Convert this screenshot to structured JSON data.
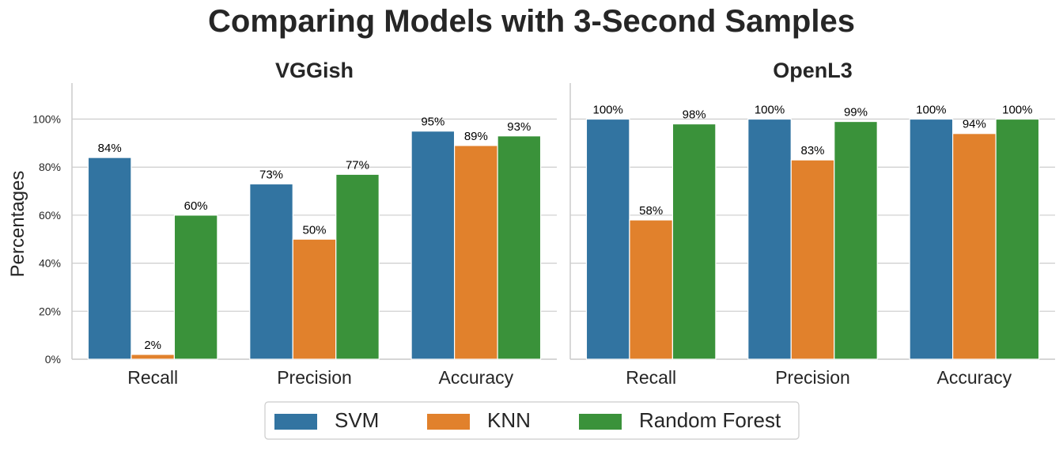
{
  "title": "Comparing Models with 3-Second Samples",
  "ylabel": "Percentages",
  "colors": {
    "SVM": "#3274a1",
    "KNN": "#e1812c",
    "Random Forest": "#3a923a",
    "grid": "#cccccc",
    "axis": "#cccccc"
  },
  "chart_data": [
    {
      "type": "bar",
      "title": "VGGish",
      "categories": [
        "Recall",
        "Precision",
        "Accuracy"
      ],
      "series": [
        {
          "name": "SVM",
          "values": [
            84,
            73,
            95
          ]
        },
        {
          "name": "KNN",
          "values": [
            2,
            50,
            89
          ]
        },
        {
          "name": "Random Forest",
          "values": [
            60,
            77,
            93
          ]
        }
      ],
      "ylim": [
        0,
        115
      ],
      "yticks": [
        "0%",
        "20%",
        "40%",
        "60%",
        "80%",
        "100%"
      ],
      "ytick_values": [
        0,
        20,
        40,
        60,
        80,
        100
      ],
      "grid": true
    },
    {
      "type": "bar",
      "title": "OpenL3",
      "categories": [
        "Recall",
        "Precision",
        "Accuracy"
      ],
      "series": [
        {
          "name": "SVM",
          "values": [
            100,
            100,
            100
          ]
        },
        {
          "name": "KNN",
          "values": [
            58,
            83,
            94
          ]
        },
        {
          "name": "Random Forest",
          "values": [
            98,
            99,
            100
          ]
        }
      ],
      "ylim": [
        0,
        115
      ],
      "grid": true
    }
  ],
  "legend": {
    "placement": "bottom-center",
    "entries": [
      "SVM",
      "KNN",
      "Random Forest"
    ]
  }
}
